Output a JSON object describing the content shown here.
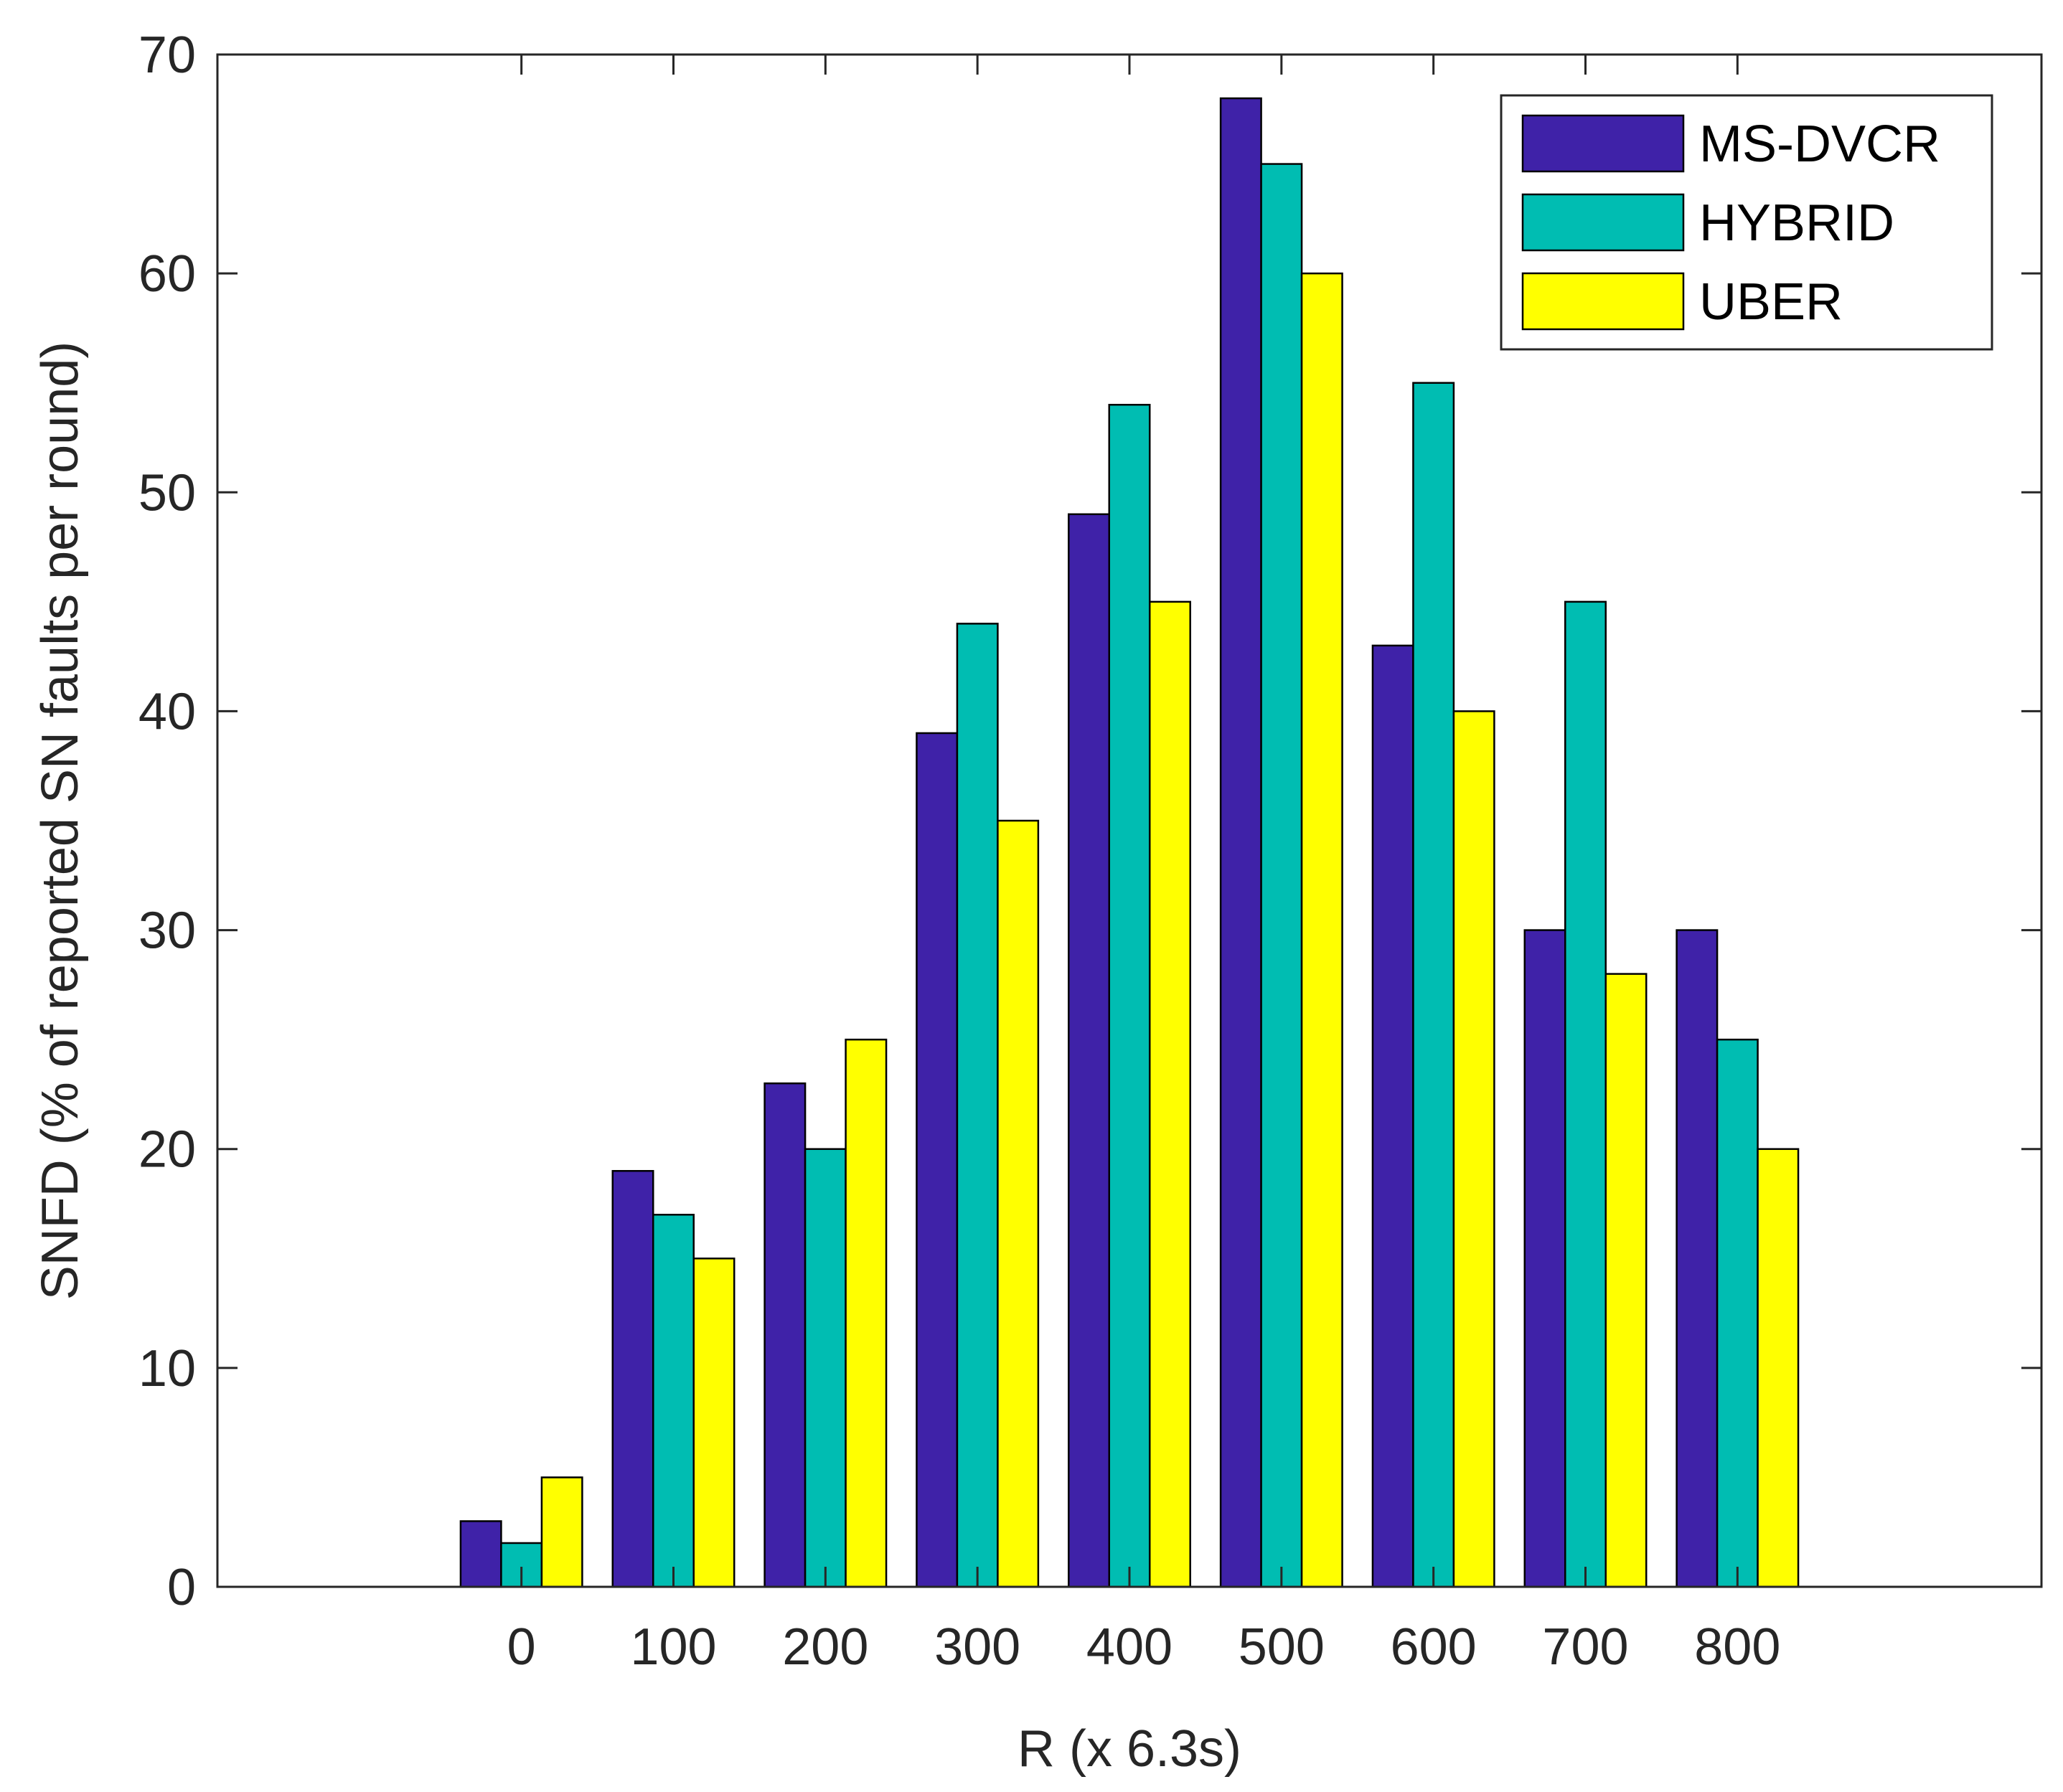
{
  "chart_data": {
    "type": "bar",
    "categories": [
      "0",
      "100",
      "200",
      "300",
      "400",
      "500",
      "600",
      "700",
      "800"
    ],
    "series": [
      {
        "name": "MS-DVCR",
        "color": "#3f22a8",
        "values": [
          3,
          19,
          23,
          39,
          49,
          68,
          43,
          30,
          30
        ]
      },
      {
        "name": "HYBRID",
        "color": "#00bdb2",
        "values": [
          2,
          17,
          20,
          44,
          54,
          65,
          55,
          45,
          25
        ]
      },
      {
        "name": "UBER",
        "color": "#ffff00",
        "values": [
          5,
          15,
          25,
          35,
          45,
          60,
          40,
          28,
          20
        ]
      }
    ],
    "title": "",
    "xlabel": "R (x 6.3s)",
    "ylabel": "SNFD (% of reported SN faults per round)",
    "ylim": [
      0,
      70
    ],
    "yticks": [
      0,
      10,
      20,
      30,
      40,
      50,
      60,
      70
    ],
    "xlim": [
      -200,
      1000
    ],
    "grid": false,
    "legend_position": "top-right"
  }
}
